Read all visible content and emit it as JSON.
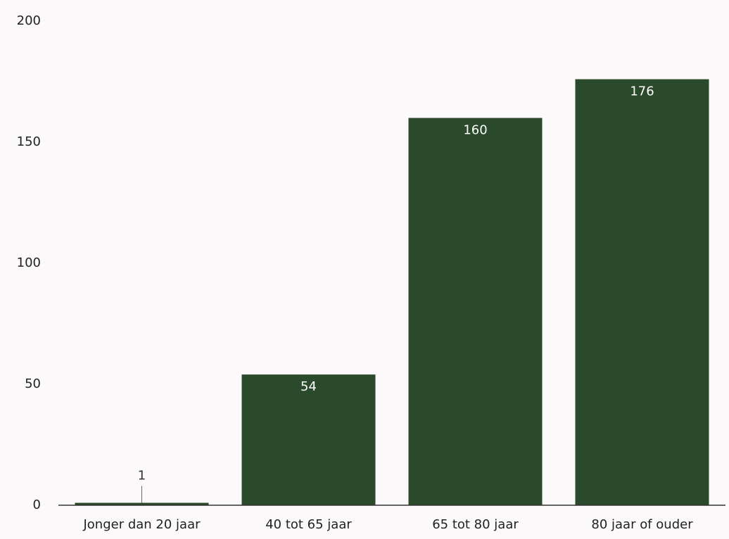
{
  "chart_data": {
    "type": "bar",
    "categories": [
      "Jonger dan 20 jaar",
      "40 tot 65 jaar",
      "65 tot 80 jaar",
      "80 jaar of ouder"
    ],
    "values": [
      1,
      54,
      160,
      176
    ],
    "color": "#2b4a2b",
    "ylim": [
      0,
      200
    ],
    "yticks": [
      0,
      50,
      100,
      150,
      200
    ],
    "grid": false
  }
}
